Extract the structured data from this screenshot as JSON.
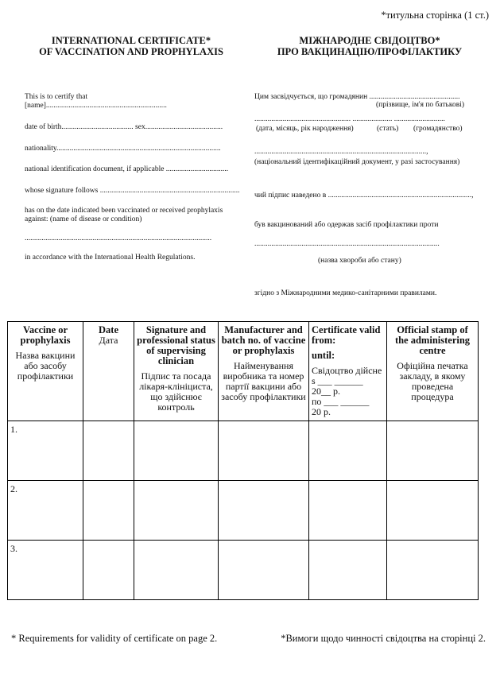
{
  "page_note": "*титульна сторінка (1 ст.)",
  "title_en": [
    "INTERNATIONAL CERTIFICATE*",
    "OF VACCINATION AND PROPHYLAXIS"
  ],
  "title_ua": [
    "МІЖНАРОДНЕ СВІДОЦТВО*",
    "ПРО ВАКЦИНАЦІЮ/ПРОФІЛАКТИКУ"
  ],
  "en_lines": [
    "This is to certify that",
    "[name]................................................................",
    "date of birth...................................... sex.........................................",
    "nationality.......................................................................................",
    "national identification document, if applicable .................................",
    "whose signature follows ..........................................................................",
    "has on the date indicated been vaccinated or received prophylaxis",
    "against: (name of disease or condition)",
    "...................................................................................................",
    "in accordance with the International Health Regulations."
  ],
  "ua_lines": [
    "Цим засвідчується, що громадянин ................................................",
    "(прізвище, ім'я по батькові)",
    "................................................... ..................... ...........................",
    "(дата, місяць, рік народження)",
    "(стать)",
    "(громадянство)",
    "...........................................................................................,",
    "(національний ідентифікаційний документ, у разі застосування)",
    "чий підпис наведено в ............................................................................,",
    "був вакцинований  або  одержав  засіб  профілактики проти",
    "..................................................................................................",
    "(назва хвороби або стану)",
    "згідно з Міжнародними медико-санітарними правилами."
  ],
  "table": {
    "headers": [
      {
        "en": "Vaccine or prophylaxis",
        "ua": "Назва вакцини або засобу профілактики"
      },
      {
        "en": "Date",
        "ua": "Дата"
      },
      {
        "en": "Signature and professional status of supervising clinician",
        "ua": "Підпис та посада лікаря-клініциста, що здійснює контроль"
      },
      {
        "en": "Manufacturer and batch no. of vaccine or prophylaxis",
        "ua": "Найменування виробника та номер партії вакцини або засобу профілактики"
      },
      {
        "en1": "Certificate valid from:",
        "en2": "until:",
        "ua": "Свідоцтво дійсне",
        "l1": "s ___  ______",
        "l2": "20__ p.",
        "l3": "по ___  ______",
        "l4": "20    p."
      },
      {
        "en": "Official stamp of the administering centre",
        "ua": "Офіційна печатка закладу, в якому проведена процедура"
      }
    ],
    "rows": [
      "1.",
      "2.",
      "3."
    ]
  },
  "footer_en": "* Requirements for validity of certificate on page 2.",
  "footer_ua": "*Вимоги  щодо чинності свідоцтва на сторінці 2."
}
